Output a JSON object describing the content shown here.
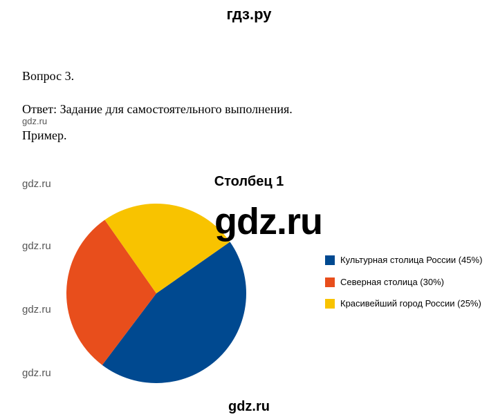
{
  "header": {
    "title": "гдз.ру"
  },
  "document": {
    "question_label": "Вопрос 3.",
    "answer_line": "Ответ: Задание для самостоятельного выполнения.",
    "example_label": "Пример."
  },
  "watermarks": {
    "small": "gdz.ru",
    "big": "gdz.ru",
    "bottom": "gdz.ru"
  },
  "chart": {
    "type": "pie",
    "title": "Столбец 1",
    "title_fontsize": 20,
    "legend_fontsize": 13,
    "background_color": "#ffffff",
    "radius": 130,
    "start_angle_deg": -35,
    "direction": "clockwise",
    "slices": [
      {
        "label": "Культурная столица России (45%)",
        "value": 45,
        "color": "#004990"
      },
      {
        "label": "Северная столица (30%)",
        "value": 30,
        "color": "#e84e1c"
      },
      {
        "label": "Красивейший город России (25%)",
        "value": 25,
        "color": "#f8c300"
      }
    ]
  }
}
